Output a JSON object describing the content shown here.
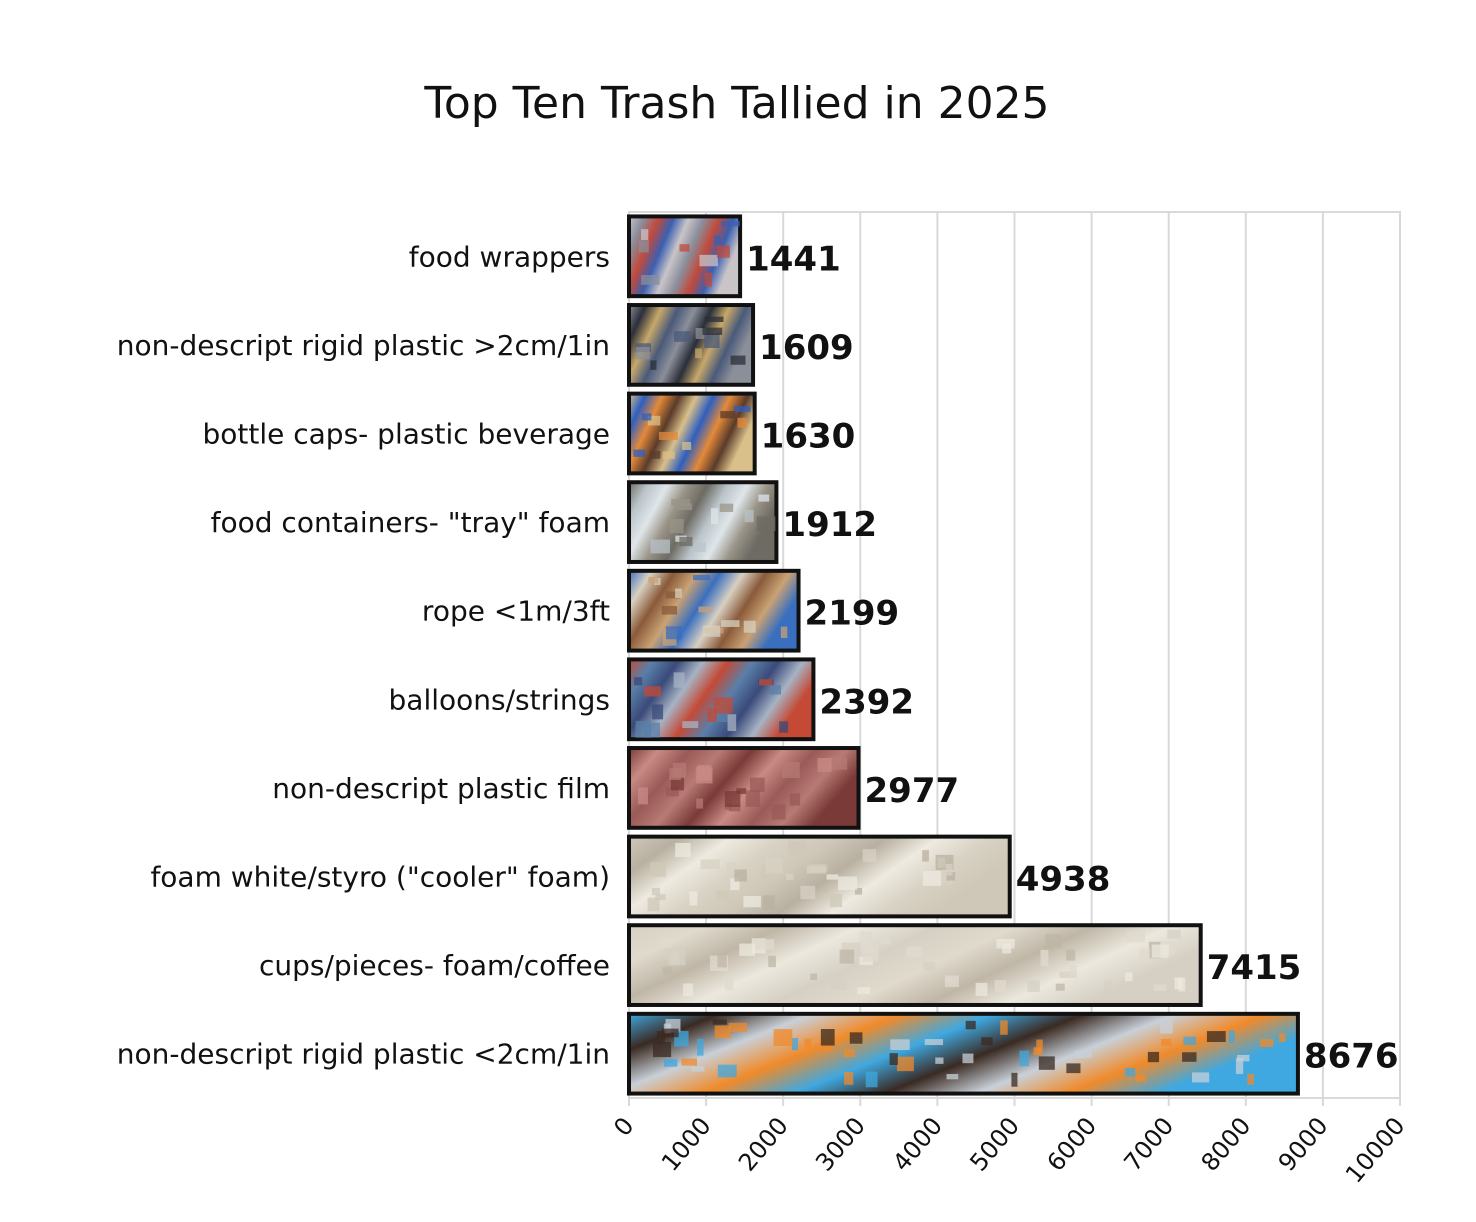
{
  "chart_data": {
    "type": "bar",
    "orientation": "horizontal",
    "title": "Top Ten Trash Tallied in 2025",
    "xlabel": "",
    "ylabel": "",
    "xlim": [
      0,
      10000
    ],
    "x_ticks": [
      "0",
      "1000",
      "2000",
      "3000",
      "4000",
      "5000",
      "6000",
      "7000",
      "8000",
      "9000",
      "10000"
    ],
    "grid": "vertical",
    "legend": "none",
    "categories": [
      "food wrappers",
      "non-descript rigid plastic >2cm/1in",
      "bottle caps- plastic beverage",
      "food containers- \"tray\" foam",
      "rope <1m/3ft",
      "balloons/strings",
      "non-descript plastic film",
      "foam white/styro (\"cooler\" foam)",
      "cups/pieces- foam/coffee",
      "non-descript rigid plastic <2cm/1in"
    ],
    "values": [
      1441,
      1609,
      1630,
      1912,
      2199,
      2392,
      2977,
      4938,
      7415,
      8676
    ],
    "data_labels": [
      "1441",
      "1609",
      "1630",
      "1912",
      "2199",
      "2392",
      "2977",
      "4938",
      "7415",
      "8676"
    ],
    "bar_fill_colors": [
      [
        "#c9c4c8",
        "#3b5fb0",
        "#c24a3c",
        "#8a8f9c"
      ],
      [
        "#2b2f3a",
        "#8b8f99",
        "#4a5a7a",
        "#c7a86a"
      ],
      [
        "#e48a3b",
        "#2f5fbf",
        "#d9c08a",
        "#5a3b2a"
      ],
      [
        "#9a9488",
        "#dfe6ea",
        "#b9c3c8",
        "#6d6b63"
      ],
      [
        "#3a6fbf",
        "#c9a275",
        "#8a5a3a",
        "#d8d0c0"
      ],
      [
        "#5a7fa8",
        "#c44a36",
        "#a7b3c4",
        "#3a4a7a"
      ],
      [
        "#9a5a58",
        "#c98a84",
        "#7a3a38",
        "#b77a74"
      ],
      [
        "#d8d2c4",
        "#eeeae0",
        "#b8b0a0",
        "#cfc8b8"
      ],
      [
        "#d6d0c4",
        "#ece8de",
        "#bfb6a6",
        "#e0dacd"
      ],
      [
        "#3a2a22",
        "#3fa8e0",
        "#f08a2a",
        "#c8d0d8"
      ]
    ]
  }
}
